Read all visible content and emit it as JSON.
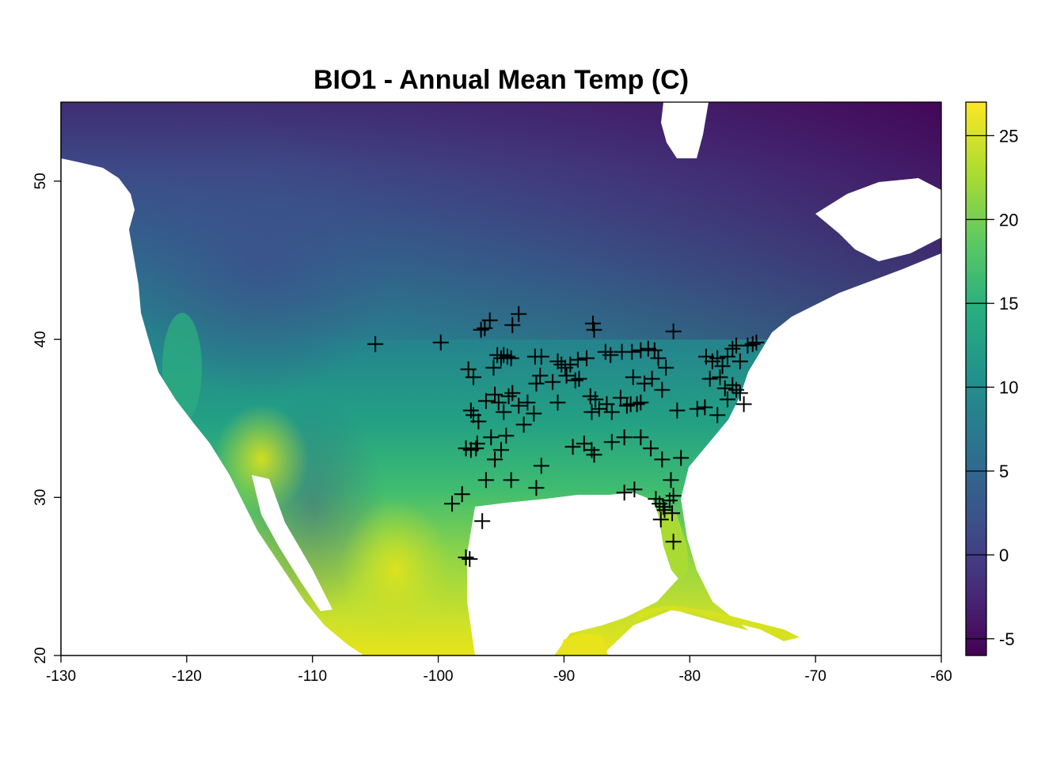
{
  "map": {
    "title": "BIO1 - Annual Mean Temp (C)",
    "type": "raster-map-with-points",
    "x_axis": {
      "range": [
        -130,
        -60
      ],
      "ticks": [
        -130,
        -120,
        -110,
        -100,
        -90,
        -80,
        -70,
        -60
      ],
      "tick_labels": [
        "-130",
        "-120",
        "-110",
        "-100",
        "-90",
        "-80",
        "-70",
        "-60"
      ]
    },
    "y_axis": {
      "range": [
        20,
        55
      ],
      "ticks": [
        20,
        30,
        40,
        50
      ],
      "tick_labels": [
        "20",
        "30",
        "40",
        "50"
      ]
    },
    "legend": {
      "position": "right",
      "range": [
        -6,
        27
      ],
      "ticks": [
        -5,
        0,
        5,
        10,
        15,
        20,
        25
      ],
      "tick_labels": [
        "-5",
        "0",
        "5",
        "10",
        "15",
        "20",
        "25"
      ],
      "colormap": [
        "#440154",
        "#472d7b",
        "#3b528b",
        "#2c728e",
        "#21918c",
        "#28ae80",
        "#5ec962",
        "#addc30",
        "#fde725"
      ]
    },
    "colors": {
      "water": "#ffffff",
      "marker": "#000000"
    },
    "points": [
      [
        -105.0,
        39.7
      ],
      [
        -99.8,
        39.8
      ],
      [
        -97.6,
        38.1
      ],
      [
        -97.2,
        37.6
      ],
      [
        -96.6,
        40.6
      ],
      [
        -96.3,
        40.7
      ],
      [
        -95.9,
        41.2
      ],
      [
        -95.6,
        38.2
      ],
      [
        -95.3,
        39.0
      ],
      [
        -95.0,
        38.8
      ],
      [
        -94.8,
        39.0
      ],
      [
        -94.5,
        38.9
      ],
      [
        -94.2,
        38.8
      ],
      [
        -93.6,
        41.6
      ],
      [
        -94.1,
        40.9
      ],
      [
        -92.3,
        38.9
      ],
      [
        -91.8,
        38.9
      ],
      [
        -90.5,
        38.6
      ],
      [
        -90.2,
        38.4
      ],
      [
        -89.9,
        38.2
      ],
      [
        -89.5,
        38.4
      ],
      [
        -88.9,
        38.7
      ],
      [
        -88.2,
        38.8
      ],
      [
        -87.7,
        41.0
      ],
      [
        -87.6,
        40.6
      ],
      [
        -86.7,
        39.2
      ],
      [
        -86.3,
        39.0
      ],
      [
        -85.4,
        39.2
      ],
      [
        -84.6,
        39.2
      ],
      [
        -83.9,
        39.3
      ],
      [
        -83.3,
        39.4
      ],
      [
        -82.8,
        39.3
      ],
      [
        -82.5,
        38.8
      ],
      [
        -81.9,
        38.2
      ],
      [
        -81.3,
        40.5
      ],
      [
        -97.4,
        35.5
      ],
      [
        -97.2,
        35.2
      ],
      [
        -96.8,
        34.8
      ],
      [
        -96.2,
        36.1
      ],
      [
        -95.5,
        36.5
      ],
      [
        -95.2,
        36.0
      ],
      [
        -94.8,
        35.4
      ],
      [
        -94.4,
        36.4
      ],
      [
        -94.1,
        36.6
      ],
      [
        -93.6,
        35.8
      ],
      [
        -92.9,
        36.0
      ],
      [
        -92.4,
        35.3
      ],
      [
        -92.2,
        37.2
      ],
      [
        -91.9,
        37.7
      ],
      [
        -90.9,
        37.3
      ],
      [
        -90.5,
        36.0
      ],
      [
        -89.8,
        37.7
      ],
      [
        -89.1,
        37.4
      ],
      [
        -88.8,
        37.5
      ],
      [
        -87.9,
        36.4
      ],
      [
        -87.5,
        36.2
      ],
      [
        -87.8,
        35.4
      ],
      [
        -87.2,
        35.6
      ],
      [
        -86.6,
        35.9
      ],
      [
        -86.2,
        35.4
      ],
      [
        -85.5,
        36.3
      ],
      [
        -85.0,
        35.8
      ],
      [
        -84.7,
        35.9
      ],
      [
        -84.2,
        35.9
      ],
      [
        -83.9,
        36.0
      ],
      [
        -84.5,
        37.6
      ],
      [
        -83.6,
        37.2
      ],
      [
        -83.0,
        37.5
      ],
      [
        -82.2,
        36.8
      ],
      [
        -81.0,
        35.5
      ],
      [
        -97.8,
        33.1
      ],
      [
        -97.4,
        33.0
      ],
      [
        -97.0,
        33.1
      ],
      [
        -96.9,
        33.4
      ],
      [
        -95.8,
        33.8
      ],
      [
        -95.5,
        32.4
      ],
      [
        -95.0,
        33.0
      ],
      [
        -94.6,
        33.9
      ],
      [
        -93.2,
        34.6
      ],
      [
        -91.8,
        32.0
      ],
      [
        -89.3,
        33.2
      ],
      [
        -88.4,
        33.4
      ],
      [
        -87.8,
        33.0
      ],
      [
        -87.6,
        32.7
      ],
      [
        -86.2,
        33.5
      ],
      [
        -85.2,
        33.8
      ],
      [
        -83.9,
        33.8
      ],
      [
        -83.1,
        33.1
      ],
      [
        -82.2,
        32.4
      ],
      [
        -80.7,
        32.5
      ],
      [
        -98.9,
        29.6
      ],
      [
        -98.1,
        30.2
      ],
      [
        -96.5,
        28.5
      ],
      [
        -96.2,
        31.1
      ],
      [
        -94.2,
        31.1
      ],
      [
        -92.2,
        30.6
      ],
      [
        -97.8,
        26.2
      ],
      [
        -97.5,
        26.1
      ],
      [
        -85.2,
        30.3
      ],
      [
        -84.4,
        30.5
      ],
      [
        -82.7,
        29.9
      ],
      [
        -82.4,
        29.6
      ],
      [
        -82.3,
        28.6
      ],
      [
        -82.0,
        29.2
      ],
      [
        -81.6,
        29.8
      ],
      [
        -81.4,
        29.0
      ],
      [
        -81.3,
        30.1
      ],
      [
        -81.5,
        31.1
      ],
      [
        -81.3,
        27.2
      ],
      [
        -82.1,
        29.4
      ],
      [
        -78.7,
        38.9
      ],
      [
        -78.2,
        38.6
      ],
      [
        -77.8,
        38.8
      ],
      [
        -77.4,
        38.3
      ],
      [
        -77.0,
        38.9
      ],
      [
        -76.6,
        39.4
      ],
      [
        -76.3,
        39.6
      ],
      [
        -76.0,
        38.6
      ],
      [
        -75.4,
        39.6
      ],
      [
        -75.0,
        39.7
      ],
      [
        -74.7,
        39.8
      ],
      [
        -78.4,
        37.5
      ],
      [
        -77.6,
        37.6
      ],
      [
        -77.2,
        36.9
      ],
      [
        -76.6,
        37.1
      ],
      [
        -76.3,
        36.8
      ],
      [
        -76.0,
        36.6
      ],
      [
        -77.0,
        36.2
      ],
      [
        -75.7,
        35.9
      ],
      [
        -77.8,
        35.2
      ],
      [
        -78.8,
        35.7
      ],
      [
        -79.4,
        35.6
      ]
    ]
  }
}
